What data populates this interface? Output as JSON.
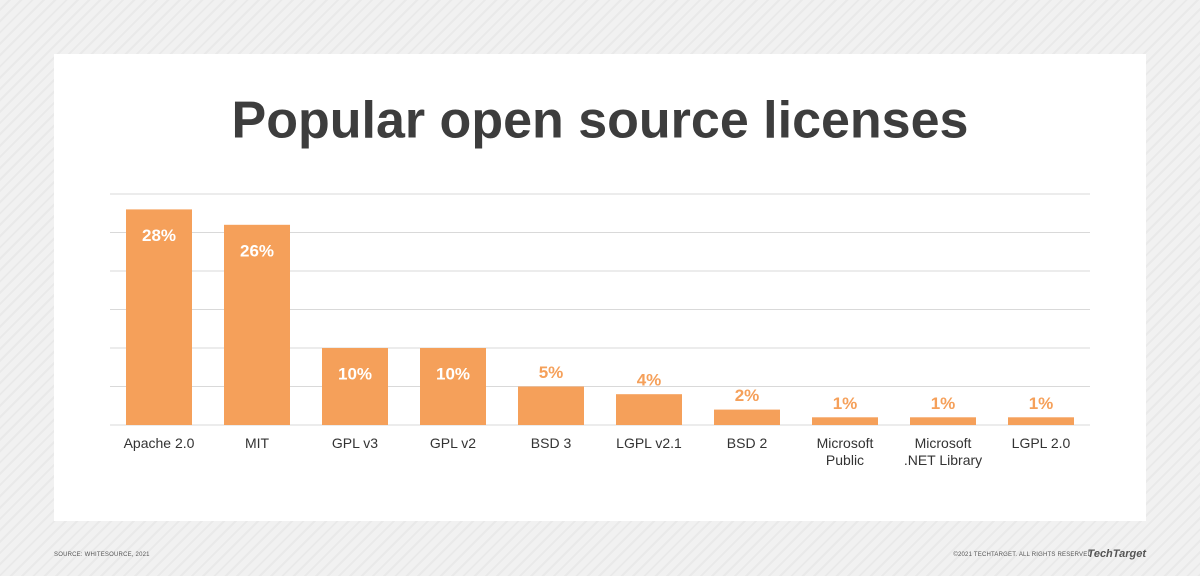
{
  "chart_data": {
    "type": "bar",
    "title": "Popular open source licenses",
    "categories": [
      "Apache 2.0",
      "MIT",
      "GPL v3",
      "GPL v2",
      "BSD 3",
      "LGPL v2.1",
      "BSD 2",
      "Microsoft\nPublic",
      "Microsoft\n.NET Library",
      "LGPL 2.0"
    ],
    "values": [
      28,
      26,
      10,
      10,
      5,
      4,
      2,
      1,
      1,
      1
    ],
    "value_labels": [
      "28%",
      "26%",
      "10%",
      "10%",
      "5%",
      "4%",
      "2%",
      "1%",
      "1%",
      "1%"
    ],
    "color": "#f5a05a",
    "ylim": [
      0,
      30
    ],
    "yticks": [
      0,
      5,
      10,
      15,
      20,
      25,
      30
    ],
    "grid": true
  },
  "footer": {
    "source": "SOURCE: WHITESOURCE, 2021",
    "copyright": "©2021 TECHTARGET. ALL RIGHTS RESERVED",
    "logo": "TechTarget"
  }
}
